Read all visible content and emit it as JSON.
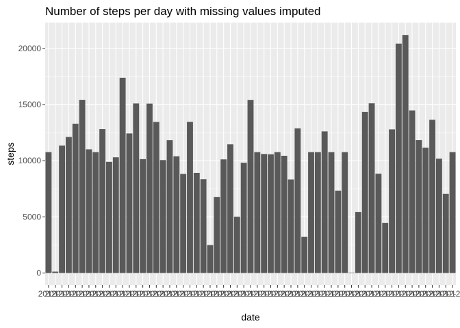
{
  "chart_data": {
    "type": "bar",
    "title": "Number of steps per day with missing values imputed",
    "xlabel": "date",
    "ylabel": "steps",
    "ylim": [
      -1060,
      22300
    ],
    "yticks": [
      0,
      5000,
      10000,
      15000,
      20000
    ],
    "ytick_labels": [
      "0",
      "5000",
      "10000",
      "15000",
      "20000"
    ],
    "grid": true,
    "legend": "none",
    "bar_color": "#595959",
    "panel_color": "#ebebeb",
    "grid_color": "#ffffff",
    "x_tick_label_text": "2012-",
    "categories": [
      "2012-10-01",
      "2012-10-02",
      "2012-10-03",
      "2012-10-04",
      "2012-10-05",
      "2012-10-06",
      "2012-10-07",
      "2012-10-08",
      "2012-10-09",
      "2012-10-10",
      "2012-10-11",
      "2012-10-12",
      "2012-10-13",
      "2012-10-14",
      "2012-10-15",
      "2012-10-16",
      "2012-10-17",
      "2012-10-18",
      "2012-10-19",
      "2012-10-20",
      "2012-10-21",
      "2012-10-22",
      "2012-10-23",
      "2012-10-24",
      "2012-10-25",
      "2012-10-26",
      "2012-10-27",
      "2012-10-28",
      "2012-10-29",
      "2012-10-30",
      "2012-10-31",
      "2012-11-01",
      "2012-11-02",
      "2012-11-03",
      "2012-11-04",
      "2012-11-05",
      "2012-11-06",
      "2012-11-07",
      "2012-11-08",
      "2012-11-09",
      "2012-11-10",
      "2012-11-11",
      "2012-11-12",
      "2012-11-13",
      "2012-11-14",
      "2012-11-15",
      "2012-11-16",
      "2012-11-17",
      "2012-11-18",
      "2012-11-19",
      "2012-11-20",
      "2012-11-21",
      "2012-11-22",
      "2012-11-23",
      "2012-11-24",
      "2012-11-25",
      "2012-11-26",
      "2012-11-27",
      "2012-11-28",
      "2012-11-29",
      "2012-11-30"
    ],
    "values": [
      10766,
      126,
      11352,
      12116,
      13294,
      15420,
      11015,
      10766,
      12811,
      9900,
      10304,
      17382,
      12426,
      15098,
      10139,
      15084,
      13452,
      10056,
      11829,
      10395,
      8821,
      13460,
      8918,
      8355,
      2492,
      6778,
      10119,
      11458,
      5018,
      9819,
      15414,
      10766,
      10600,
      10571,
      10766,
      10439,
      8334,
      12883,
      3219,
      10766,
      10766,
      12608,
      10765,
      7336,
      10766,
      41,
      5441,
      14339,
      15110,
      8841,
      4472,
      12787,
      20427,
      21194,
      14478,
      11834,
      11162,
      13646,
      10183,
      7047,
      10766
    ]
  }
}
